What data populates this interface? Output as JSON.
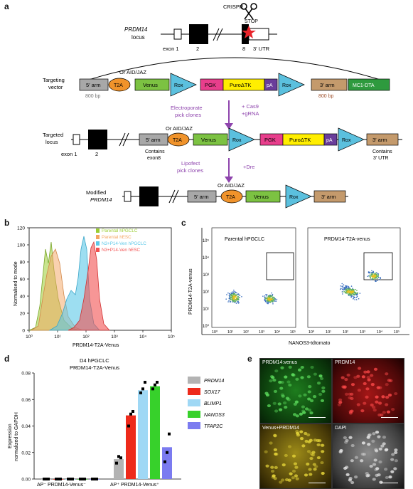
{
  "panels": {
    "a": "a",
    "b": "b",
    "c": "c",
    "d": "d",
    "e": "e"
  },
  "panel_a": {
    "crispr": "CRISPR",
    "stop": "STOP",
    "locus_name": "PRDM14",
    "locus_word": "locus",
    "exon1": "exon 1",
    "exon2": "2",
    "exon8": "8",
    "utr": "3′ UTR",
    "targeting_vector": [
      "Targeting",
      "vector"
    ],
    "targeted_locus": [
      "Targeted",
      "locus"
    ],
    "modified": [
      "Modified",
      "PRDM14"
    ],
    "or_aid": "Or AID/JAZ",
    "arm5": "5′ arm",
    "arm3": "3′ arm",
    "t2a": "T2A",
    "venus": "Venus",
    "rox": "Rox",
    "pgk": "PGK",
    "puro": "PuroΔTK",
    "pa": "pA",
    "mc1": "MC1-DTA",
    "bp5": "800 bp",
    "bp3": "800 bp",
    "electroporate": [
      "Electroporate",
      "pick clones"
    ],
    "cas9": [
      "+ Cas9",
      "+gRNA"
    ],
    "lipofect": [
      "Lipofect",
      "pick clones"
    ],
    "dre": "+Dre",
    "contains5": [
      "Contains",
      "exon8"
    ],
    "contains3": [
      "Contains",
      "3′ UTR"
    ],
    "colors": {
      "t2a": "#f0932b",
      "venus": "#7cc242",
      "rox": "#5bc0de",
      "pgk": "#e83e8c",
      "puro": "#ffee00",
      "pa": "#6a3d9a",
      "arm": "#a8a8a8",
      "arm3": "#c49a6c",
      "mc1": "#2e9a3e",
      "arrow": "#8e44ad"
    }
  },
  "panel_b": {
    "ylabel": "Normalised to mode",
    "xlabel": "PRDM14-T2A-Venus",
    "legend": [
      "Parental hPGCLC",
      "Parental hESC",
      "N3+P14-Ven hPGCLC",
      "N3+P14-Ven hESC"
    ],
    "colors": [
      "#9acd32",
      "#f4a460",
      "#5bc8e8",
      "#f25050"
    ],
    "yticks": [
      "0",
      "20",
      "40",
      "60",
      "80",
      "100",
      "120"
    ],
    "xticks": [
      "10⁰",
      "10¹",
      "10²",
      "10³",
      "10⁴",
      "10⁵"
    ]
  },
  "panel_c": {
    "ylabel": "PRDM14-T2A-venus",
    "xlabel": "NANOS3-tdtomato",
    "titles": [
      "Parental hPGCLC",
      "PRDM14-T2A-venus"
    ],
    "yticks": [
      "10⁰",
      "10¹",
      "10²",
      "10³",
      "10⁴",
      "10⁵"
    ],
    "xticks": [
      "10⁰",
      "10¹",
      "10²",
      "10³",
      "10⁴",
      "10⁵"
    ]
  },
  "chart_data": [
    {
      "type": "bar",
      "title": "D4 hPGCLC PRDM14-T2A-Venus",
      "ylabel": "Expression normalized to GAPDH",
      "ylim": [
        0,
        0.08
      ],
      "yticks": [
        "0.00",
        "0.02",
        "0.04",
        "0.06",
        "0.08"
      ],
      "categories": [
        "AP⁻ PRDM14-Venus⁻",
        "AP⁺ PRDM14-Venus⁺"
      ],
      "series": [
        {
          "name": "PRDM14",
          "color": "#b3b3b3",
          "values": [
            0.0,
            0.015
          ]
        },
        {
          "name": "SOX17",
          "color": "#ee2a1b",
          "values": [
            0.0,
            0.048
          ]
        },
        {
          "name": "BLIMP1",
          "color": "#9fd8f5",
          "values": [
            0.0,
            0.067
          ]
        },
        {
          "name": "NANOS3",
          "color": "#37d12b",
          "values": [
            0.0,
            0.07
          ]
        },
        {
          "name": "TFAP2C",
          "color": "#7b7bf0",
          "values": [
            0.0,
            0.024
          ]
        }
      ],
      "points": [
        [
          [
            0,
            0,
            0
          ],
          [
            0.012,
            0.017,
            0.016
          ]
        ],
        [
          [
            0,
            0,
            0
          ],
          [
            0.04,
            0.049,
            0.051
          ]
        ],
        [
          [
            0,
            0,
            0
          ],
          [
            0.065,
            0.068,
            0.073
          ]
        ],
        [
          [
            0,
            0,
            0
          ],
          [
            0.068,
            0.071,
            0.073
          ]
        ],
        [
          [
            0,
            0,
            0
          ],
          [
            0.013,
            0.02,
            0.034
          ]
        ]
      ]
    }
  ],
  "panel_e": {
    "labels": [
      "PRDM14:venus",
      "PRDM14",
      "Venus+PRDM14",
      "DAPI"
    ]
  }
}
